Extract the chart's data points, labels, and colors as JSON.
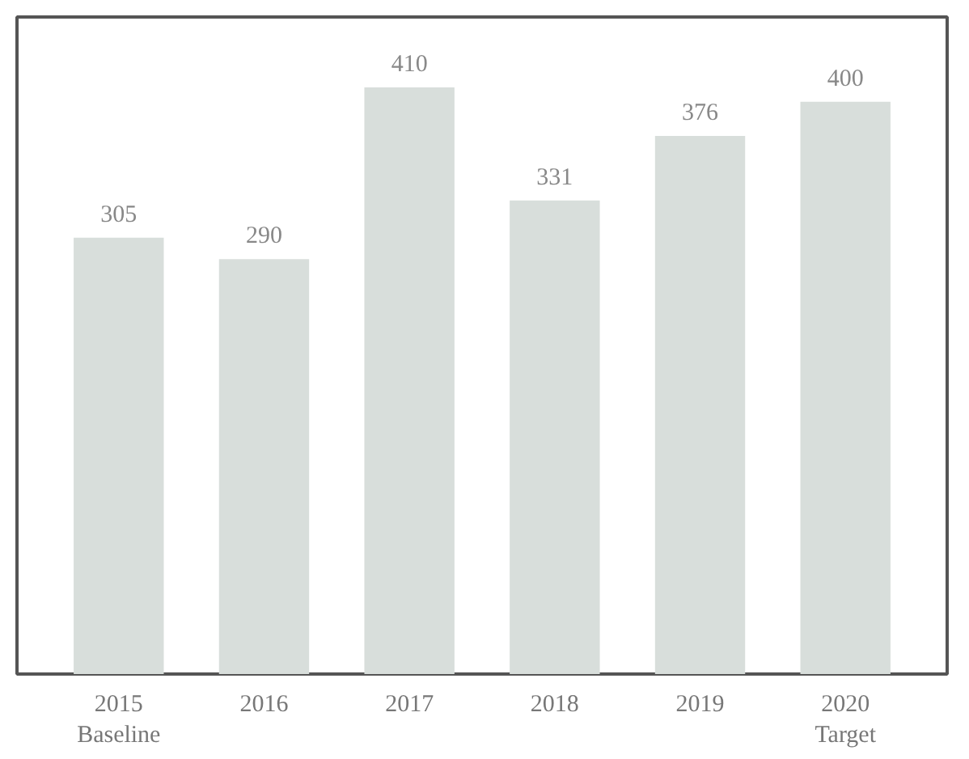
{
  "chart_data": {
    "type": "bar",
    "categories": [
      "2015\nBaseline",
      "2016",
      "2017",
      "2018",
      "2019",
      "2020\nTarget"
    ],
    "values": [
      305,
      290,
      410,
      331,
      376,
      400
    ],
    "color": "#d8dedb",
    "data_labels": true
  }
}
